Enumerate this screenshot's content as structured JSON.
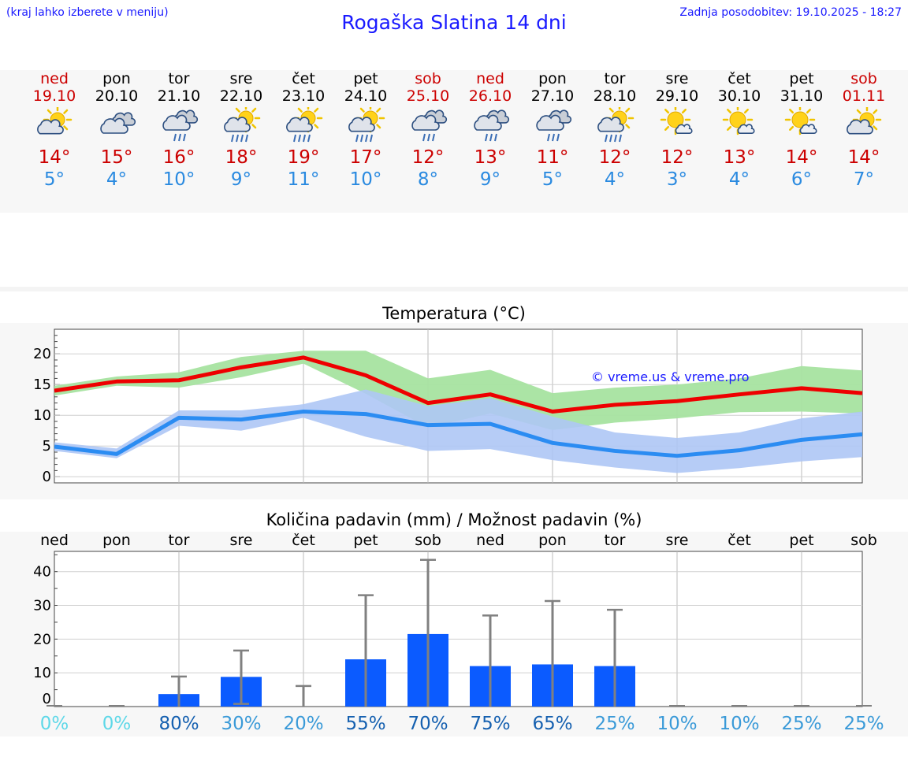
{
  "header": {
    "hint": "(kraj lahko izberete v meniju)",
    "title": "Rogaška Slatina 14 dni",
    "updated": "Zadnja posodobitev: 19.10.2025 - 18:27"
  },
  "days": [
    {
      "day": "ned",
      "date": "19.10",
      "max": "14°",
      "min": "5°",
      "icon": "sun-cloud-icon",
      "weekend": true
    },
    {
      "day": "pon",
      "date": "20.10",
      "max": "15°",
      "min": "4°",
      "icon": "cloudy-icon",
      "weekend": false
    },
    {
      "day": "tor",
      "date": "21.10",
      "max": "16°",
      "min": "10°",
      "icon": "cloud-rain-icon",
      "weekend": false
    },
    {
      "day": "sre",
      "date": "22.10",
      "max": "18°",
      "min": "9°",
      "icon": "sun-cloud-rain-icon",
      "weekend": false
    },
    {
      "day": "čet",
      "date": "23.10",
      "max": "19°",
      "min": "11°",
      "icon": "sun-cloud-rain-icon",
      "weekend": false
    },
    {
      "day": "pet",
      "date": "24.10",
      "max": "17°",
      "min": "10°",
      "icon": "sun-cloud-rain-icon",
      "weekend": false
    },
    {
      "day": "sob",
      "date": "25.10",
      "max": "12°",
      "min": "8°",
      "icon": "cloud-rain-icon",
      "weekend": true
    },
    {
      "day": "ned",
      "date": "26.10",
      "max": "13°",
      "min": "9°",
      "icon": "cloud-rain-icon",
      "weekend": true
    },
    {
      "day": "pon",
      "date": "27.10",
      "max": "11°",
      "min": "5°",
      "icon": "cloud-rain-icon",
      "weekend": false
    },
    {
      "day": "tor",
      "date": "28.10",
      "max": "12°",
      "min": "4°",
      "icon": "sun-cloud-rain-icon",
      "weekend": false
    },
    {
      "day": "sre",
      "date": "29.10",
      "max": "12°",
      "min": "3°",
      "icon": "sun-small-cloud-icon",
      "weekend": false
    },
    {
      "day": "čet",
      "date": "30.10",
      "max": "13°",
      "min": "4°",
      "icon": "sun-small-cloud-icon",
      "weekend": false
    },
    {
      "day": "pet",
      "date": "31.10",
      "max": "14°",
      "min": "6°",
      "icon": "sun-small-cloud-icon",
      "weekend": false
    },
    {
      "day": "sob",
      "date": "01.11",
      "max": "14°",
      "min": "7°",
      "icon": "sun-cloud-icon",
      "weekend": true
    }
  ],
  "colors": {
    "accent": "#1a1aff",
    "weekend": "#cc0000",
    "max_line": "#ee0000",
    "min_line": "#2b8cf2",
    "max_band": "#a6e3a0",
    "min_band": "#aec6f5",
    "bar": "#0b5bff",
    "whisker": "#808080"
  },
  "chart_data": [
    {
      "type": "line",
      "title": "Temperatura (°C)",
      "watermark": "© vreme.us & vreme.pro",
      "x": [
        "19.10",
        "20.10",
        "21.10",
        "22.10",
        "23.10",
        "24.10",
        "25.10",
        "26.10",
        "27.10",
        "28.10",
        "29.10",
        "30.10",
        "31.10",
        "01.11"
      ],
      "ylim": [
        -1,
        24
      ],
      "yticks": [
        0,
        5,
        10,
        15,
        20
      ],
      "grid": true,
      "series": [
        {
          "name": "max",
          "values": [
            14,
            15.5,
            15.7,
            17.8,
            19.4,
            16.5,
            12,
            13.4,
            10.6,
            11.7,
            12.3,
            13.4,
            14.4,
            13.6
          ],
          "band_low": [
            13.2,
            14.8,
            14.5,
            16.2,
            18.4,
            13.5,
            8.0,
            10.3,
            7.6,
            8.8,
            9.5,
            10.5,
            10.6,
            10.3
          ],
          "band_high": [
            14.8,
            16.3,
            17.0,
            19.5,
            20.5,
            20.5,
            16.0,
            17.4,
            13.6,
            14.5,
            15.0,
            16.0,
            18.0,
            17.3
          ]
        },
        {
          "name": "min",
          "values": [
            4.9,
            3.7,
            9.6,
            9.3,
            10.6,
            10.2,
            8.4,
            8.6,
            5.5,
            4.2,
            3.4,
            4.3,
            6.0,
            6.9
          ],
          "band_low": [
            4.2,
            3.0,
            8.3,
            7.5,
            9.6,
            6.5,
            4.2,
            4.5,
            2.7,
            1.5,
            0.6,
            1.4,
            2.5,
            3.2
          ],
          "band_high": [
            5.6,
            4.6,
            10.8,
            10.8,
            11.8,
            14.2,
            11.5,
            12.8,
            9.8,
            7.2,
            6.3,
            7.2,
            9.5,
            10.6
          ]
        }
      ]
    },
    {
      "type": "bar",
      "title": "Količina padavin (mm) / Možnost padavin (%)",
      "categories": [
        "ned",
        "pon",
        "tor",
        "sre",
        "čet",
        "pet",
        "sob",
        "ned",
        "pon",
        "tor",
        "sre",
        "čet",
        "pet",
        "sob"
      ],
      "values": [
        0,
        0,
        3.7,
        8.8,
        0,
        14,
        21.5,
        12,
        12.5,
        12,
        0,
        0,
        0,
        0
      ],
      "error_low": [
        0,
        0,
        0,
        0.8,
        0,
        0,
        0,
        0,
        0,
        0,
        0,
        0,
        0,
        0
      ],
      "error_high": [
        0,
        0,
        8.9,
        16.6,
        6.1,
        33,
        43.5,
        27,
        31.3,
        28.7,
        0,
        0,
        0,
        0
      ],
      "chance": [
        "0%",
        "0%",
        "80%",
        "30%",
        "20%",
        "55%",
        "70%",
        "75%",
        "65%",
        "25%",
        "10%",
        "10%",
        "25%",
        "25%"
      ],
      "chance_colors": [
        "#5ed8e8",
        "#5ed8e8",
        "#1560b0",
        "#3a9ad8",
        "#3a9ad8",
        "#1560b0",
        "#1560b0",
        "#1560b0",
        "#1560b0",
        "#3a9ad8",
        "#3a9ad8",
        "#3a9ad8",
        "#3a9ad8",
        "#3a9ad8"
      ],
      "ylim": [
        0,
        46
      ],
      "yticks": [
        0,
        10,
        20,
        30,
        40
      ],
      "grid": true
    }
  ]
}
